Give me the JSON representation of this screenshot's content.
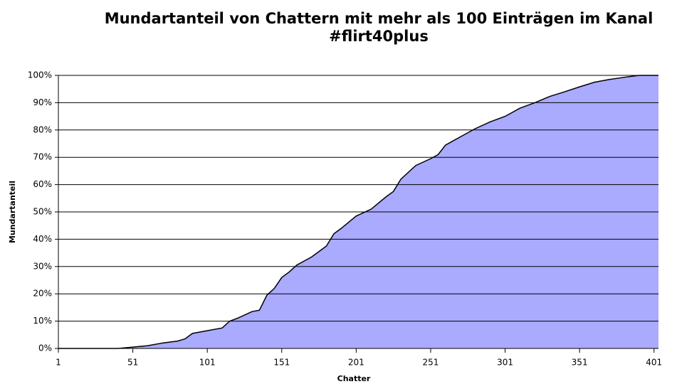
{
  "chart_data": {
    "type": "area",
    "title": "Mundartanteil von Chattern mit mehr als 100 Einträgen im Kanal #flirt40plus",
    "xlabel": "Chatter",
    "ylabel": "Mundartanteil",
    "x": [
      1,
      41,
      45,
      51,
      61,
      71,
      81,
      86,
      91,
      101,
      111,
      116,
      121,
      131,
      136,
      141,
      146,
      151,
      156,
      161,
      171,
      181,
      186,
      191,
      201,
      211,
      221,
      226,
      231,
      241,
      251,
      256,
      261,
      271,
      281,
      291,
      301,
      311,
      321,
      331,
      341,
      351,
      361,
      371,
      381,
      391,
      404
    ],
    "values": [
      0,
      0,
      0.2,
      0.5,
      1,
      2,
      2.7,
      3.5,
      5.5,
      6.5,
      7.5,
      10,
      11,
      13.5,
      14,
      19.5,
      22,
      26,
      28,
      30.5,
      33.5,
      37.5,
      42,
      44,
      48.5,
      51,
      55.5,
      57.5,
      62,
      67,
      69.5,
      71,
      74.5,
      77.5,
      80.5,
      83,
      85,
      88,
      90,
      92.3,
      94,
      95.8,
      97.5,
      98.5,
      99.3,
      100,
      100
    ],
    "color": "#aaaaff",
    "line_color": "#000000",
    "xlim": [
      1,
      404
    ],
    "xticks": [
      1,
      51,
      101,
      151,
      201,
      251,
      301,
      351,
      401
    ],
    "ylim": [
      0,
      100
    ],
    "yticks": [
      {
        "value": 0,
        "label": "0%"
      },
      {
        "value": 10,
        "label": "10%"
      },
      {
        "value": 20,
        "label": "20%"
      },
      {
        "value": 30,
        "label": "30%"
      },
      {
        "value": 40,
        "label": "40%"
      },
      {
        "value": 50,
        "label": "50%"
      },
      {
        "value": 60,
        "label": "60%"
      },
      {
        "value": 70,
        "label": "70%"
      },
      {
        "value": 80,
        "label": "80%"
      },
      {
        "value": 90,
        "label": "90%"
      },
      {
        "value": 100,
        "label": "100%"
      }
    ],
    "grid": true
  }
}
